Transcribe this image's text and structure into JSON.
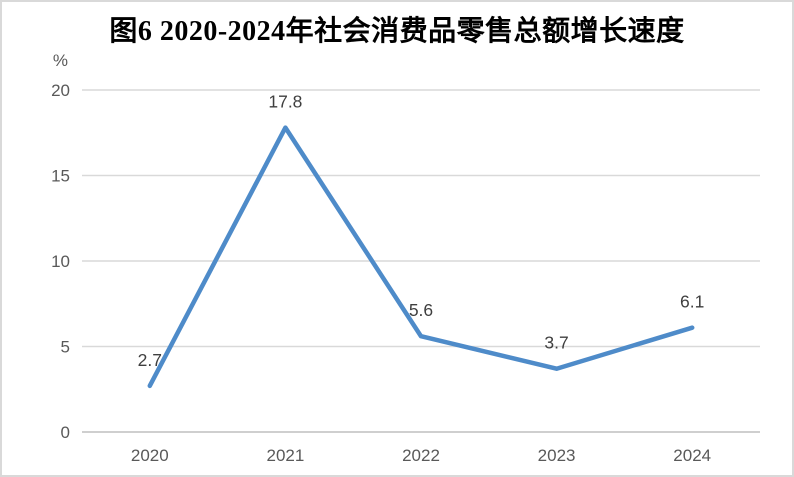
{
  "page": {
    "background": "#ffffff",
    "border_color": "#d9d9d9"
  },
  "chart_data": {
    "type": "line",
    "title": "图6 2020-2024年社会消费品零售总额增长速度",
    "unit_label": "%",
    "categories": [
      "2020",
      "2021",
      "2022",
      "2023",
      "2024"
    ],
    "values": [
      2.7,
      17.8,
      5.6,
      3.7,
      6.1
    ],
    "data_labels": [
      "2.7",
      "17.8",
      "5.6",
      "3.7",
      "6.1"
    ],
    "xlabel": "",
    "ylabel": "%",
    "ylim": [
      0,
      20
    ],
    "yticks": [
      0,
      5,
      10,
      15,
      20
    ],
    "grid": true,
    "legend": "none",
    "line_color": "#4e8bc9"
  },
  "style_colors": {
    "line": "#4e8bc9",
    "gridline": "#d9d9d9",
    "axis_line": "#bfbfbf",
    "tick_text": "#595959",
    "data_label_text": "#3f3f3f",
    "title_text": "#000000"
  }
}
